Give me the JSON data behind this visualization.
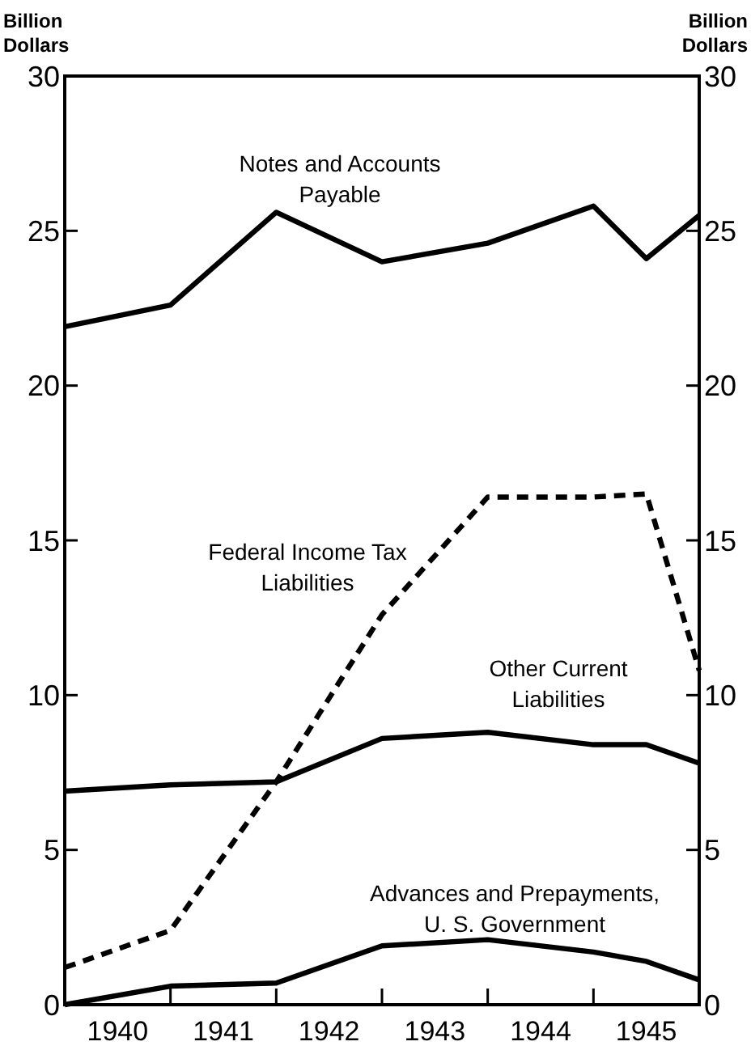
{
  "chart_data": {
    "type": "line",
    "ylabel": "Billion Dollars",
    "y2label": "Billion Dollars",
    "x": [
      1940,
      1941,
      1942,
      1943,
      1944,
      1945,
      1945.5,
      1946
    ],
    "xlim": [
      1940,
      1946
    ],
    "xticks": [
      {
        "value": 1940.5,
        "label": "1940"
      },
      {
        "value": 1941,
        "label": null
      },
      {
        "value": 1941.5,
        "label": "1941"
      },
      {
        "value": 1942,
        "label": null
      },
      {
        "value": 1942.5,
        "label": "1942"
      },
      {
        "value": 1943,
        "label": null
      },
      {
        "value": 1943.5,
        "label": "1943"
      },
      {
        "value": 1944,
        "label": null
      },
      {
        "value": 1944.5,
        "label": "1944"
      },
      {
        "value": 1945,
        "label": null
      },
      {
        "value": 1945.5,
        "label": "1945"
      }
    ],
    "ylim": [
      0,
      30
    ],
    "yticks": [
      0,
      5,
      10,
      15,
      20,
      25,
      30
    ],
    "y2lim": [
      0,
      30
    ],
    "y2ticks": [
      0,
      5,
      10,
      15,
      20,
      25,
      30
    ],
    "grid": false,
    "legend": false,
    "marker": "none",
    "series": [
      {
        "name": "Notes and Accounts Payable",
        "color": "#000000",
        "line_style": "solid",
        "values": [
          21.9,
          22.6,
          25.6,
          24,
          24.6,
          25.8,
          24.1,
          25.5
        ]
      },
      {
        "name": "Federal Income Tax Liabilities",
        "color": "#000000",
        "line_style": "dashed",
        "values": [
          1.2,
          2.4,
          7.2,
          12.6,
          16.4,
          16.4,
          16.5,
          10.8
        ]
      },
      {
        "name": "Other Current Liabilities",
        "color": "#000000",
        "line_style": "solid",
        "values": [
          6.9,
          7.1,
          7.2,
          8.6,
          8.8,
          8.4,
          8.4,
          7.8
        ]
      },
      {
        "name": "Advances and Prepayments, U. S. Government",
        "color": "#000000",
        "line_style": "solid",
        "values": [
          0,
          0.6,
          0.7,
          1.9,
          2.1,
          1.7,
          1.4,
          0.8
        ]
      }
    ]
  }
}
